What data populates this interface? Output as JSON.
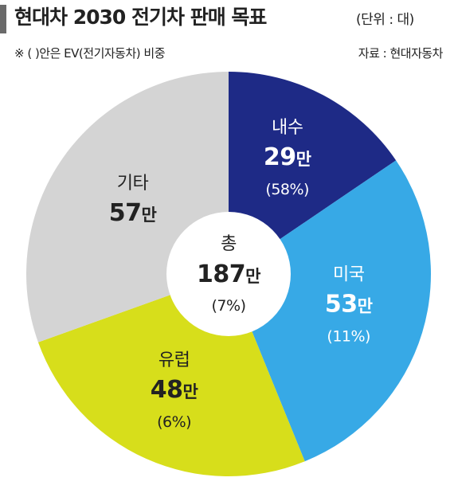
{
  "header": {
    "title": "현대차 2030 전기차 판매 목표",
    "unit": "(단위 : 대)",
    "note": "※ (   )안은 EV(전기자동차) 비중",
    "source": "자료 : 현대자동차"
  },
  "chart_data": {
    "type": "pie",
    "value_suffix": "만",
    "center": {
      "label": "총",
      "value": "187",
      "suffix": "만",
      "percent": "(7%)"
    },
    "slices": [
      {
        "name": "내수",
        "value": 29,
        "display": "29",
        "percent": "(58%)",
        "color": "#1e2a86",
        "text_color": "#ffffff"
      },
      {
        "name": "미국",
        "value": 53,
        "display": "53",
        "percent": "(11%)",
        "color": "#37a9e6",
        "text_color": "#ffffff"
      },
      {
        "name": "유럽",
        "value": 48,
        "display": "48",
        "percent": "(6%)",
        "color": "#d7de1b",
        "text_color": "#222222"
      },
      {
        "name": "기타",
        "value": 57,
        "display": "57",
        "percent": "",
        "color": "#d4d4d4",
        "text_color": "#222222"
      }
    ]
  }
}
